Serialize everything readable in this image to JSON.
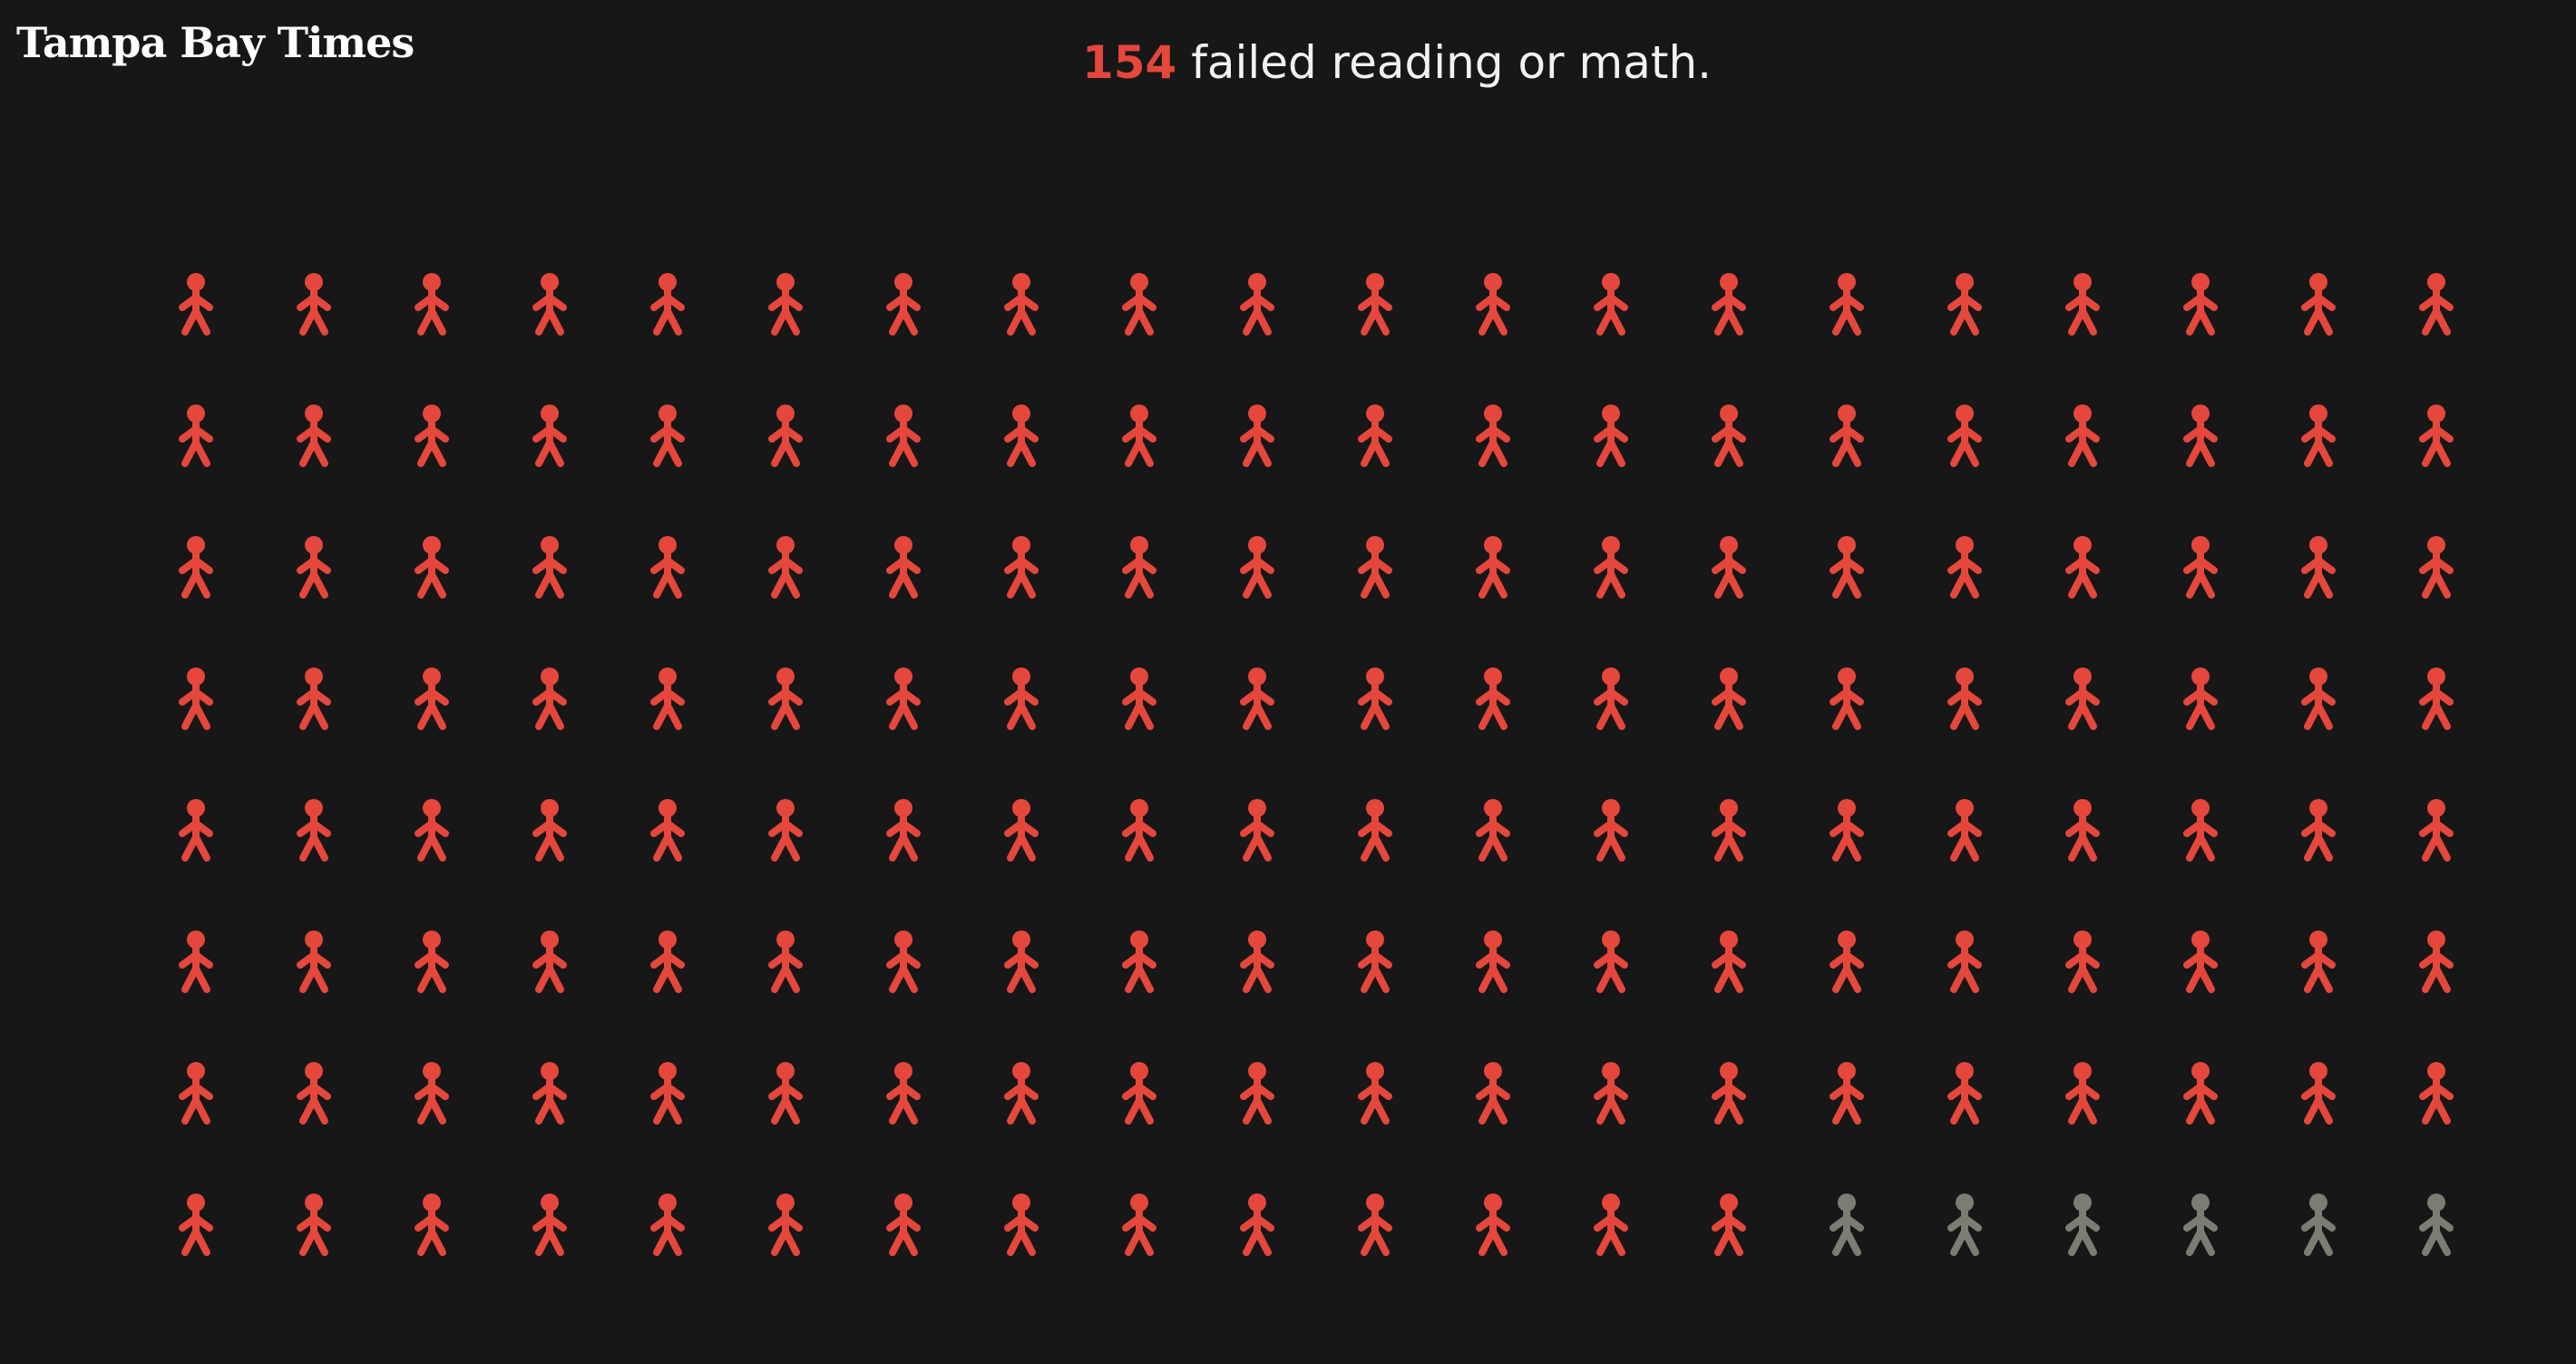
{
  "brand": {
    "name": "Tampa Bay Times"
  },
  "headline": {
    "count": "154",
    "text": "failed reading or math."
  },
  "colors": {
    "background": "#171717",
    "highlight": "#e5473c",
    "neutral": "#7b7d73",
    "text": "#f2f2f2"
  },
  "chart_data": {
    "type": "pictogram",
    "unit": "student",
    "columns": 20,
    "rows": 8,
    "total": 160,
    "highlighted": 154,
    "not_highlighted": 6,
    "highlighted_label": "failed reading or math",
    "icon": "person-icon"
  }
}
